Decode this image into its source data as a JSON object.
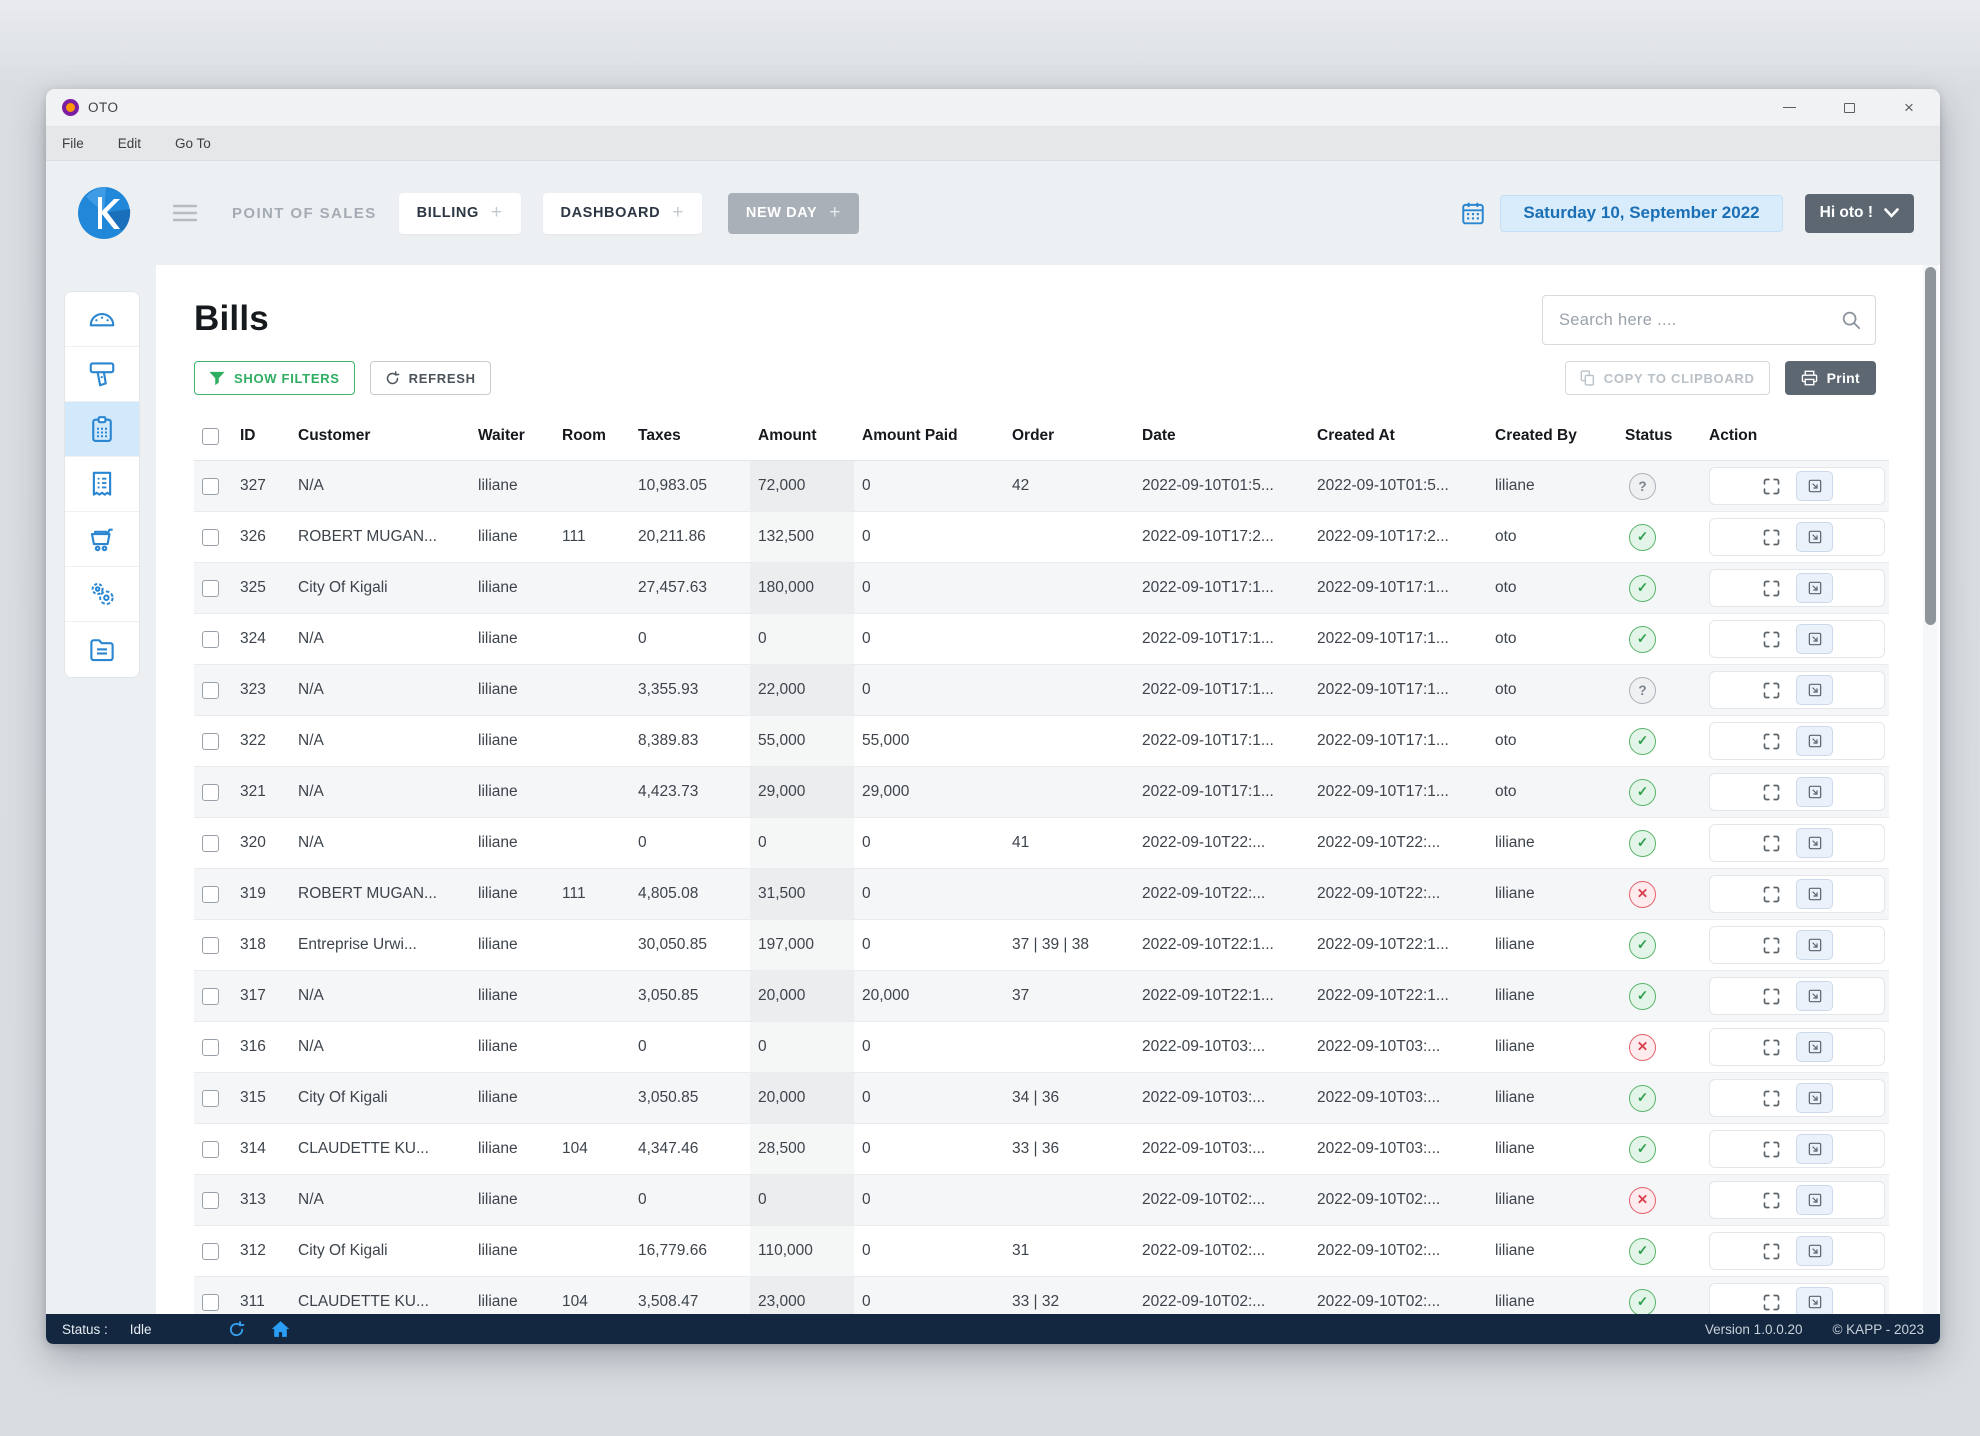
{
  "window": {
    "title": "OTO",
    "controls": {
      "minimize": "minimize",
      "maximize": "maximize",
      "close": "×"
    }
  },
  "menu_bar": {
    "items": [
      "File",
      "Edit",
      "Go To"
    ]
  },
  "header": {
    "app_section": "POINT OF SALES",
    "billing_label": "BILLING",
    "dashboard_label": "DASHBOARD",
    "new_day_label": "NEW DAY",
    "date": "Saturday 10, September 2022",
    "user_button": "Hi oto !",
    "accent_blue": "#2187d8"
  },
  "sidebar": {
    "items": [
      {
        "name": "sidebar-item-dashboard",
        "icon": "dashboard-gauge-icon",
        "active": false
      },
      {
        "name": "sidebar-item-pos",
        "icon": "pos-terminal-icon",
        "active": false
      },
      {
        "name": "sidebar-item-bills",
        "icon": "bills-clipboard-icon",
        "active": true
      },
      {
        "name": "sidebar-item-invoices",
        "icon": "invoice-receipt-icon",
        "active": false
      },
      {
        "name": "sidebar-item-orders",
        "icon": "cart-icon",
        "active": false
      },
      {
        "name": "sidebar-item-settings",
        "icon": "settings-gears-icon",
        "active": false
      },
      {
        "name": "sidebar-item-documents",
        "icon": "documents-folder-icon",
        "active": false
      }
    ]
  },
  "page": {
    "title": "Bills",
    "show_filters_label": "SHOW FILTERS",
    "refresh_label": "REFRESH",
    "search_placeholder": "Search here ....",
    "copy_label": "COPY TO CLIPBOARD",
    "print_label": "Print"
  },
  "table": {
    "columns": [
      "ID",
      "Customer",
      "Waiter",
      "Room",
      "Taxes",
      "Amount",
      "Amount Paid",
      "Order",
      "Date",
      "Created At",
      "Created By",
      "Status",
      "Action"
    ],
    "rows": [
      {
        "id": "327",
        "customer": "N/A",
        "waiter": "liliane",
        "room": "",
        "taxes": "10,983.05",
        "amount": "72,000",
        "amount_paid": "0",
        "order": "42",
        "date": "2022-09-10T01:5...",
        "created_at": "2022-09-10T01:5...",
        "created_by": "liliane",
        "status": "unknown"
      },
      {
        "id": "326",
        "customer": "ROBERT MUGAN...",
        "waiter": "liliane",
        "room": "111",
        "taxes": "20,211.86",
        "amount": "132,500",
        "amount_paid": "0",
        "order": "",
        "date": "2022-09-10T17:2...",
        "created_at": "2022-09-10T17:2...",
        "created_by": "oto",
        "status": "ok"
      },
      {
        "id": "325",
        "customer": "City Of Kigali",
        "waiter": "liliane",
        "room": "",
        "taxes": "27,457.63",
        "amount": "180,000",
        "amount_paid": "0",
        "order": "",
        "date": "2022-09-10T17:1...",
        "created_at": "2022-09-10T17:1...",
        "created_by": "oto",
        "status": "ok"
      },
      {
        "id": "324",
        "customer": "N/A",
        "waiter": "liliane",
        "room": "",
        "taxes": "0",
        "amount": "0",
        "amount_paid": "0",
        "order": "",
        "date": "2022-09-10T17:1...",
        "created_at": "2022-09-10T17:1...",
        "created_by": "oto",
        "status": "ok"
      },
      {
        "id": "323",
        "customer": "N/A",
        "waiter": "liliane",
        "room": "",
        "taxes": "3,355.93",
        "amount": "22,000",
        "amount_paid": "0",
        "order": "",
        "date": "2022-09-10T17:1...",
        "created_at": "2022-09-10T17:1...",
        "created_by": "oto",
        "status": "unknown"
      },
      {
        "id": "322",
        "customer": "N/A",
        "waiter": "liliane",
        "room": "",
        "taxes": "8,389.83",
        "amount": "55,000",
        "amount_paid": "55,000",
        "order": "",
        "date": "2022-09-10T17:1...",
        "created_at": "2022-09-10T17:1...",
        "created_by": "oto",
        "status": "ok"
      },
      {
        "id": "321",
        "customer": "N/A",
        "waiter": "liliane",
        "room": "",
        "taxes": "4,423.73",
        "amount": "29,000",
        "amount_paid": "29,000",
        "order": "",
        "date": "2022-09-10T17:1...",
        "created_at": "2022-09-10T17:1...",
        "created_by": "oto",
        "status": "ok"
      },
      {
        "id": "320",
        "customer": "N/A",
        "waiter": "liliane",
        "room": "",
        "taxes": "0",
        "amount": "0",
        "amount_paid": "0",
        "order": "41",
        "date": "2022-09-10T22:...",
        "created_at": "2022-09-10T22:...",
        "created_by": "liliane",
        "status": "ok"
      },
      {
        "id": "319",
        "customer": "ROBERT MUGAN...",
        "waiter": "liliane",
        "room": "111",
        "taxes": "4,805.08",
        "amount": "31,500",
        "amount_paid": "0",
        "order": "",
        "date": "2022-09-10T22:...",
        "created_at": "2022-09-10T22:...",
        "created_by": "liliane",
        "status": "error"
      },
      {
        "id": "318",
        "customer": "Entreprise Urwi...",
        "waiter": "liliane",
        "room": "",
        "taxes": "30,050.85",
        "amount": "197,000",
        "amount_paid": "0",
        "order": "37 | 39 | 38",
        "date": "2022-09-10T22:1...",
        "created_at": "2022-09-10T22:1...",
        "created_by": "liliane",
        "status": "ok"
      },
      {
        "id": "317",
        "customer": "N/A",
        "waiter": "liliane",
        "room": "",
        "taxes": "3,050.85",
        "amount": "20,000",
        "amount_paid": "20,000",
        "order": "37",
        "date": "2022-09-10T22:1...",
        "created_at": "2022-09-10T22:1...",
        "created_by": "liliane",
        "status": "ok"
      },
      {
        "id": "316",
        "customer": "N/A",
        "waiter": "liliane",
        "room": "",
        "taxes": "0",
        "amount": "0",
        "amount_paid": "0",
        "order": "",
        "date": "2022-09-10T03:...",
        "created_at": "2022-09-10T03:...",
        "created_by": "liliane",
        "status": "error"
      },
      {
        "id": "315",
        "customer": "City Of Kigali",
        "waiter": "liliane",
        "room": "",
        "taxes": "3,050.85",
        "amount": "20,000",
        "amount_paid": "0",
        "order": "34 | 36",
        "date": "2022-09-10T03:...",
        "created_at": "2022-09-10T03:...",
        "created_by": "liliane",
        "status": "ok"
      },
      {
        "id": "314",
        "customer": "CLAUDETTE KU...",
        "waiter": "liliane",
        "room": "104",
        "taxes": "4,347.46",
        "amount": "28,500",
        "amount_paid": "0",
        "order": "33 | 36",
        "date": "2022-09-10T03:...",
        "created_at": "2022-09-10T03:...",
        "created_by": "liliane",
        "status": "ok"
      },
      {
        "id": "313",
        "customer": "N/A",
        "waiter": "liliane",
        "room": "",
        "taxes": "0",
        "amount": "0",
        "amount_paid": "0",
        "order": "",
        "date": "2022-09-10T02:...",
        "created_at": "2022-09-10T02:...",
        "created_by": "liliane",
        "status": "error"
      },
      {
        "id": "312",
        "customer": "City Of Kigali",
        "waiter": "liliane",
        "room": "",
        "taxes": "16,779.66",
        "amount": "110,000",
        "amount_paid": "0",
        "order": "31",
        "date": "2022-09-10T02:...",
        "created_at": "2022-09-10T02:...",
        "created_by": "liliane",
        "status": "ok"
      },
      {
        "id": "311",
        "customer": "CLAUDETTE KU...",
        "waiter": "liliane",
        "room": "104",
        "taxes": "3,508.47",
        "amount": "23,000",
        "amount_paid": "0",
        "order": "33 | 32",
        "date": "2022-09-10T02:...",
        "created_at": "2022-09-10T02:...",
        "created_by": "liliane",
        "status": "ok"
      }
    ],
    "status_colors": {
      "ok": "#58b368",
      "error": "#e4606a",
      "unknown": "#aab1b8"
    }
  },
  "status_bar": {
    "label": "Status :",
    "value": "Idle",
    "version": "Version 1.0.0.20",
    "copyright": "© KAPP - 2023"
  }
}
